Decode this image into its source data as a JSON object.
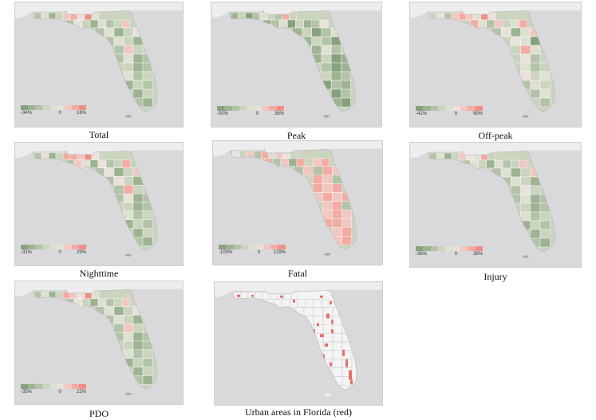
{
  "colors": {
    "water": "#d9d9dc",
    "land_outside": "#ededee",
    "ramp": [
      "#86a27c",
      "#9db392",
      "#b3c3a8",
      "#cad4bf",
      "#dde0d2",
      "#e9e1dc",
      "#f1c7c1",
      "#f2aca4",
      "#ee8f86"
    ],
    "urban_red": "#e8706b",
    "urban_base": "#f4f4f4"
  },
  "panels": [
    {
      "id": "total",
      "caption": "Total",
      "legend_min": "-34%",
      "legend_mid": "0",
      "legend_max": "16%",
      "county_shades": [
        2,
        4,
        1,
        3,
        6,
        7,
        5,
        8,
        4,
        2,
        5,
        3,
        1,
        4,
        2,
        3,
        6,
        2,
        4,
        1,
        3,
        5,
        2,
        4,
        3,
        1,
        2,
        6,
        3,
        2,
        4,
        1,
        2,
        3,
        1,
        2,
        4,
        2,
        3,
        1,
        3,
        2,
        1,
        3,
        2,
        1,
        0,
        2,
        1,
        2,
        1,
        0,
        1,
        2
      ]
    },
    {
      "id": "peak",
      "caption": "Peak",
      "legend_min": "-50%",
      "legend_mid": "0",
      "legend_max": "36%",
      "county_shades": [
        1,
        3,
        0,
        2,
        4,
        3,
        2,
        7,
        3,
        1,
        2,
        4,
        0,
        3,
        1,
        2,
        5,
        1,
        3,
        0,
        2,
        4,
        1,
        3,
        2,
        0,
        1,
        4,
        2,
        1,
        3,
        0,
        1,
        2,
        0,
        1,
        3,
        1,
        2,
        0,
        2,
        1,
        0,
        2,
        1,
        0,
        0,
        1,
        0,
        1,
        0,
        0,
        0,
        1
      ]
    },
    {
      "id": "offpeak",
      "caption": "Off-peak",
      "legend_min": "-41%",
      "legend_mid": "0",
      "legend_max": "90%",
      "county_shades": [
        3,
        5,
        2,
        6,
        7,
        6,
        4,
        8,
        5,
        3,
        7,
        4,
        2,
        6,
        3,
        4,
        7,
        2,
        5,
        1,
        4,
        6,
        3,
        5,
        4,
        0,
        3,
        7,
        4,
        3,
        5,
        2,
        3,
        4,
        2,
        3,
        5,
        3,
        4,
        2,
        4,
        3,
        2,
        4,
        3,
        2,
        1,
        3,
        2,
        3,
        2,
        1,
        2,
        3
      ]
    },
    {
      "id": "nighttime",
      "caption": "Nighttime",
      "legend_min": "-31%",
      "legend_mid": "0",
      "legend_max": "29%",
      "county_shades": [
        2,
        5,
        1,
        3,
        7,
        7,
        6,
        8,
        5,
        2,
        6,
        4,
        1,
        5,
        2,
        3,
        7,
        2,
        5,
        1,
        3,
        6,
        2,
        5,
        3,
        1,
        2,
        7,
        3,
        2,
        5,
        1,
        2,
        3,
        1,
        2,
        4,
        2,
        3,
        1,
        3,
        2,
        1,
        3,
        2,
        1,
        0,
        2,
        1,
        2,
        1,
        0,
        1,
        2
      ]
    },
    {
      "id": "fatal",
      "caption": "Fatal",
      "legend_min": "-100%",
      "legend_mid": "0",
      "legend_max": "129%",
      "county_shades": [
        5,
        3,
        6,
        2,
        7,
        4,
        6,
        5,
        3,
        7,
        2,
        6,
        1,
        7,
        3,
        6,
        7,
        2,
        6,
        2,
        7,
        6,
        3,
        7,
        6,
        2,
        7,
        6,
        7,
        6,
        7,
        6,
        7,
        6,
        7,
        2,
        6,
        7,
        6,
        7,
        7,
        6,
        6,
        7,
        6,
        7,
        6,
        7,
        6,
        7,
        6,
        7,
        6,
        6
      ]
    },
    {
      "id": "injury",
      "caption": "Injury",
      "legend_min": "-36%",
      "legend_mid": "0",
      "legend_max": "39%",
      "county_shades": [
        2,
        4,
        1,
        3,
        6,
        5,
        4,
        7,
        3,
        2,
        4,
        3,
        1,
        4,
        2,
        3,
        6,
        2,
        4,
        1,
        3,
        6,
        2,
        4,
        3,
        1,
        2,
        5,
        3,
        2,
        4,
        1,
        2,
        3,
        1,
        2,
        4,
        2,
        3,
        1,
        3,
        2,
        1,
        3,
        2,
        1,
        0,
        2,
        1,
        2,
        1,
        0,
        1,
        2
      ]
    },
    {
      "id": "pdo",
      "caption": "PDO",
      "legend_min": "-35%",
      "legend_mid": "0",
      "legend_max": "22%",
      "county_shades": [
        2,
        4,
        1,
        3,
        7,
        6,
        5,
        8,
        4,
        2,
        5,
        3,
        1,
        4,
        2,
        3,
        6,
        2,
        4,
        1,
        3,
        5,
        2,
        4,
        3,
        1,
        2,
        6,
        3,
        2,
        4,
        1,
        2,
        3,
        1,
        2,
        4,
        2,
        3,
        1,
        3,
        2,
        1,
        3,
        2,
        1,
        0,
        2,
        1,
        2,
        1,
        0,
        1,
        2
      ]
    },
    {
      "id": "urban",
      "caption": "Urban areas in Florida (red)",
      "urban": true
    }
  ]
}
